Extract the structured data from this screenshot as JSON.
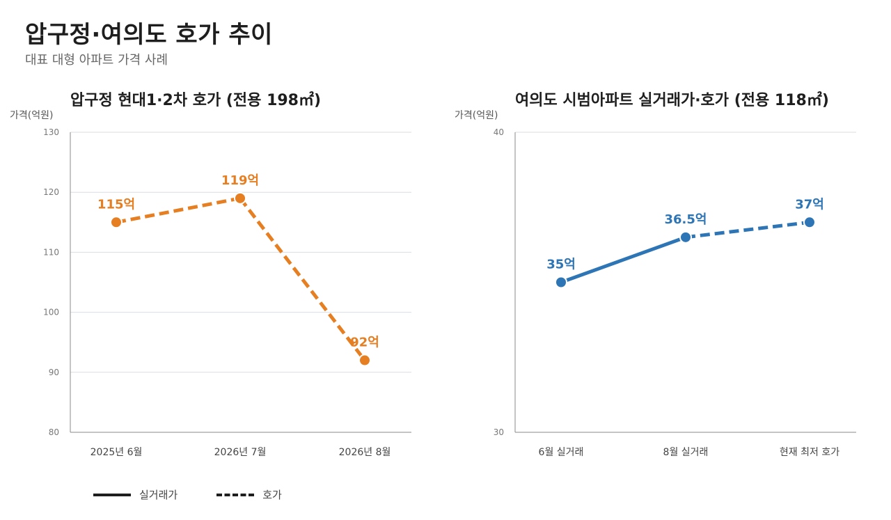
{
  "title": "압구정·여의도 호가 추이",
  "subtitle": "대표 대형 아파트 가격 사례",
  "chart_data": [
    {
      "type": "line",
      "title": "압구정 현대1·2차 호가 (전용 198㎡)",
      "ylabel": "가격(억원)",
      "xlabel": "",
      "categories": [
        "2025년 6월",
        "2026년 7월",
        "2026년 8월"
      ],
      "ylim": [
        80,
        130
      ],
      "yticks": [
        80,
        90,
        100,
        110,
        120,
        130
      ],
      "grid": true,
      "color": "#e67e22",
      "points": [
        {
          "x": "2025년 6월",
          "y": 115,
          "label": "115억"
        },
        {
          "x": "2026년 7월",
          "y": 119,
          "label": "119억"
        },
        {
          "x": "2026년 8월",
          "y": 92,
          "label": "92억"
        }
      ],
      "segments": [
        {
          "from": 0,
          "to": 1,
          "style": "dashed"
        },
        {
          "from": 1,
          "to": 2,
          "style": "dashed"
        }
      ]
    },
    {
      "type": "line",
      "title": "여의도 시범아파트 실거래가·호가 (전용 118㎡)",
      "ylabel": "가격(억원)",
      "xlabel": "",
      "categories": [
        "6월 실거래",
        "8월 실거래",
        "현재 최저 호가"
      ],
      "ylim": [
        30,
        40
      ],
      "yticks": [
        30,
        40
      ],
      "grid": true,
      "color": "#2e75b6",
      "points": [
        {
          "x": "6월 실거래",
          "y": 35,
          "label": "35억"
        },
        {
          "x": "8월 실거래",
          "y": 36.5,
          "label": "36.5억"
        },
        {
          "x": "현재 최저 호가",
          "y": 37,
          "label": "37억"
        }
      ],
      "segments": [
        {
          "from": 0,
          "to": 1,
          "style": "solid"
        },
        {
          "from": 1,
          "to": 2,
          "style": "dashed"
        }
      ]
    }
  ],
  "legend": {
    "position": "bottom-left",
    "items": [
      {
        "label": "실거래가",
        "style": "solid"
      },
      {
        "label": "호가",
        "style": "dashed"
      }
    ]
  }
}
